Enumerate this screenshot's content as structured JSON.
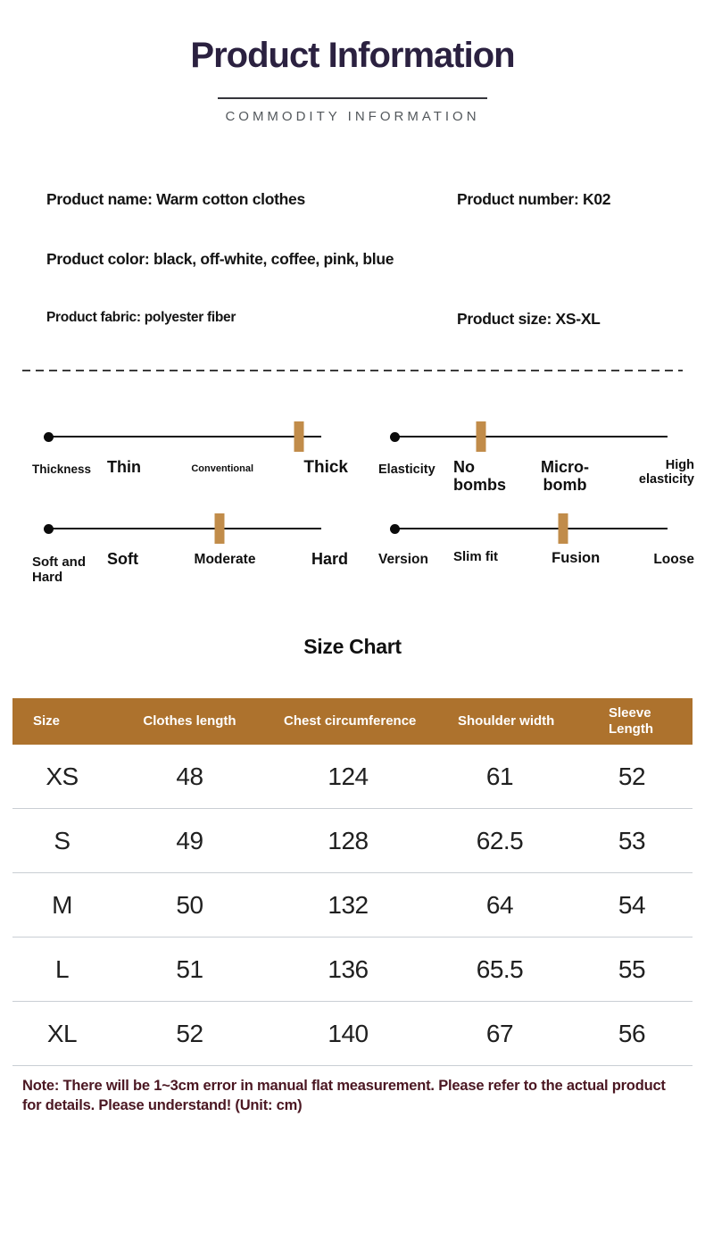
{
  "header": {
    "title": "Product Information",
    "subtitle": "COMMODITY INFORMATION"
  },
  "details": {
    "name": "Product name: Warm cotton clothes",
    "number": "Product number: K02",
    "color": "Product color: black, off-white, coffee, pink, blue",
    "fabric": "Product fabric: polyester fiber",
    "size": "Product size: XS-XL"
  },
  "sliders": [
    {
      "category": "Thickness",
      "levels": [
        "Thin",
        "Conventional",
        "Thick"
      ],
      "position_percent": 92
    },
    {
      "category": "Elasticity",
      "levels": [
        "No bombs",
        "Micro-bomb",
        "High elasticity"
      ],
      "position_percent": 32
    },
    {
      "category": "Soft and Hard",
      "levels": [
        "Soft",
        "Moderate",
        "Hard"
      ],
      "position_percent": 63
    },
    {
      "category": "Version",
      "levels": [
        "Slim fit",
        "Fusion",
        "Loose"
      ],
      "position_percent": 62
    }
  ],
  "size_chart": {
    "title": "Size Chart",
    "columns": [
      "Size",
      "Clothes length",
      "Chest circumference",
      "Shoulder width",
      "Sleeve Length"
    ],
    "rows": [
      [
        "XS",
        "48",
        "124",
        "61",
        "52"
      ],
      [
        "S",
        "49",
        "128",
        "62.5",
        "53"
      ],
      [
        "M",
        "50",
        "132",
        "64",
        "54"
      ],
      [
        "L",
        "51",
        "136",
        "65.5",
        "55"
      ],
      [
        "XL",
        "52",
        "140",
        "67",
        "56"
      ]
    ]
  },
  "note": "Note: There will be 1~3cm error in manual flat measurement. Please refer to the actual product for details. Please understand! (Unit: cm)",
  "colors": {
    "title_color": "#2b2140",
    "table_header_bg": "#ad722d",
    "marker_color": "#c18c4a",
    "note_color": "#4b1722"
  }
}
